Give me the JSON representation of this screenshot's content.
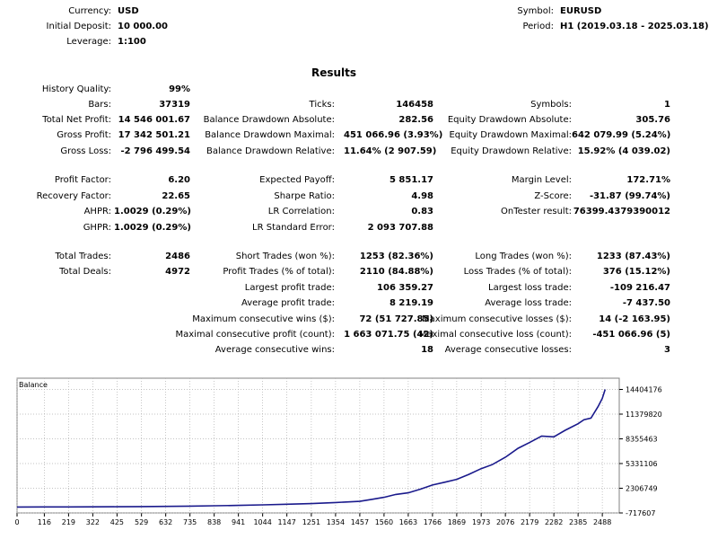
{
  "header": {
    "currency_label": "Currency:",
    "currency": "USD",
    "deposit_label": "Initial Deposit:",
    "deposit": "10 000.00",
    "leverage_label": "Leverage:",
    "leverage": "1:100",
    "symbol_label": "Symbol:",
    "symbol": "EURUSD",
    "period_label": "Period:",
    "period": "H1 (2019.03.18 - 2025.03.18)"
  },
  "results_title": "Results",
  "col1": [
    {
      "label": "History Quality:",
      "value": "99%"
    },
    {
      "label": "Bars:",
      "value": "37319"
    },
    {
      "label": "Total Net Profit:",
      "value": "14 546 001.67"
    },
    {
      "label": "Gross Profit:",
      "value": "17 342 501.21"
    },
    {
      "label": "Gross Loss:",
      "value": "-2 796 499.54"
    },
    {
      "label": "Profit Factor:",
      "value": "6.20"
    },
    {
      "label": "Recovery Factor:",
      "value": "22.65"
    },
    {
      "label": "AHPR:",
      "value": "1.0029 (0.29%)"
    },
    {
      "label": "GHPR:",
      "value": "1.0029 (0.29%)"
    },
    {
      "label": "Total Trades:",
      "value": "2486"
    },
    {
      "label": "Total Deals:",
      "value": "4972"
    }
  ],
  "col2": [
    {
      "label": "Ticks:",
      "value": "146458"
    },
    {
      "label": "Balance Drawdown Absolute:",
      "value": "282.56"
    },
    {
      "label": "Balance Drawdown Maximal:",
      "value": "451 066.96 (3.93%)"
    },
    {
      "label": "Balance Drawdown Relative:",
      "value": "11.64% (2 907.59)"
    },
    {
      "label": "Expected Payoff:",
      "value": "5 851.17"
    },
    {
      "label": "Sharpe Ratio:",
      "value": "4.98"
    },
    {
      "label": "LR Correlation:",
      "value": "0.83"
    },
    {
      "label": "LR Standard Error:",
      "value": "2 093 707.88"
    },
    {
      "label": "Short Trades (won %):",
      "value": "1253 (82.36%)"
    },
    {
      "label": "Profit Trades (% of total):",
      "value": "2110 (84.88%)"
    },
    {
      "label": "Largest profit trade:",
      "value": "106 359.27"
    },
    {
      "label": "Average profit trade:",
      "value": "8 219.19"
    },
    {
      "label": "Maximum consecutive wins ($):",
      "value": "72 (51 727.85)"
    },
    {
      "label": "Maximal consecutive profit (count):",
      "value": "1 663 071.75 (42)"
    },
    {
      "label": "Average consecutive wins:",
      "value": "18"
    }
  ],
  "col3": [
    {
      "label": "Symbols:",
      "value": "1"
    },
    {
      "label": "Equity Drawdown Absolute:",
      "value": "305.76"
    },
    {
      "label": "Equity Drawdown Maximal:",
      "value": "642 079.99 (5.24%)"
    },
    {
      "label": "Equity Drawdown Relative:",
      "value": "15.92% (4 039.02)"
    },
    {
      "label": "Margin Level:",
      "value": "172.71%"
    },
    {
      "label": "Z-Score:",
      "value": "-31.87 (99.74%)"
    },
    {
      "label": "OnTester result:",
      "value": "76399.4379390012"
    },
    {
      "label": "Long Trades (won %):",
      "value": "1233 (87.43%)"
    },
    {
      "label": "Loss Trades (% of total):",
      "value": "376 (15.12%)"
    },
    {
      "label": "Largest loss trade:",
      "value": "-109 216.47"
    },
    {
      "label": "Average loss trade:",
      "value": "-7 437.50"
    },
    {
      "label": "Maximum consecutive losses ($):",
      "value": "14 (-2 163.95)"
    },
    {
      "label": "Maximal consecutive loss (count):",
      "value": "-451 066.96 (5)"
    },
    {
      "label": "Average consecutive losses:",
      "value": "3"
    }
  ],
  "chart_data": {
    "type": "line",
    "title": "Balance",
    "line_color": "#1a1a8c",
    "grid_color": "#b0b0b0",
    "x_ticks": [
      0,
      116,
      219,
      322,
      425,
      529,
      632,
      735,
      838,
      941,
      1044,
      1147,
      1251,
      1354,
      1457,
      1560,
      1663,
      1766,
      1869,
      1973,
      2076,
      2179,
      2282,
      2385,
      2488
    ],
    "y_ticks": [
      -717607,
      2306749,
      5331106,
      8355463,
      11379820,
      14404176
    ],
    "xlim": [
      0,
      2560
    ],
    "ylim": [
      -717607,
      14900000
    ],
    "series": [
      {
        "x": [
          0,
          116,
          219,
          322,
          425,
          529,
          632,
          735,
          838,
          941,
          1044,
          1147,
          1251,
          1354,
          1457,
          1510,
          1560,
          1610,
          1663,
          1715,
          1766,
          1820,
          1869,
          1920,
          1973,
          2020,
          2076,
          2130,
          2179,
          2230,
          2282,
          2330,
          2385,
          2410,
          2440,
          2470,
          2488,
          2500
        ],
        "y": [
          10000,
          15000,
          20000,
          30000,
          45000,
          65000,
          90000,
          120000,
          160000,
          210000,
          270000,
          350000,
          430000,
          560000,
          700000,
          950000,
          1200000,
          1550000,
          1750000,
          2200000,
          2700000,
          3050000,
          3400000,
          4000000,
          4700000,
          5200000,
          6100000,
          7200000,
          7900000,
          8700000,
          8600000,
          9400000,
          10200000,
          10700000,
          10900000,
          12300000,
          13300000,
          14404176
        ]
      }
    ]
  }
}
